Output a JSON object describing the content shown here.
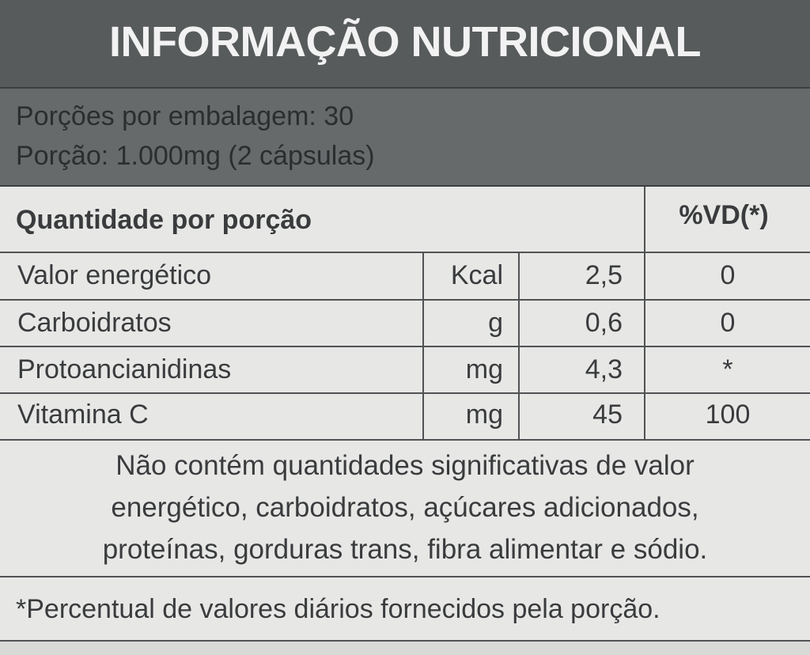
{
  "header": {
    "title": "INFORMAÇÃO NUTRICIONAL",
    "servings_per_package": "Porções por embalagem: 30",
    "serving_size": "Porção: 1.000mg (2 cápsulas)"
  },
  "table": {
    "headers": [
      "Quantidade por porção",
      "%VD(*)"
    ],
    "rows": [
      [
        "Valor energético",
        "Kcal",
        "2,5",
        "0"
      ],
      [
        "Carboidratos",
        "g",
        "0,6",
        "0"
      ],
      [
        "Protoancianidinas",
        "mg",
        "4,3",
        "*"
      ],
      [
        "Vitamina C",
        "mg",
        "45",
        "100"
      ]
    ]
  },
  "note_lines": [
    "Não contém quantidades significativas de valor",
    "energético, carboidratos, açúcares adicionados,",
    "proteínas, gorduras trans, fibra alimentar e sódio."
  ],
  "footnote": "*Percentual de valores diários fornecidos pela porção."
}
